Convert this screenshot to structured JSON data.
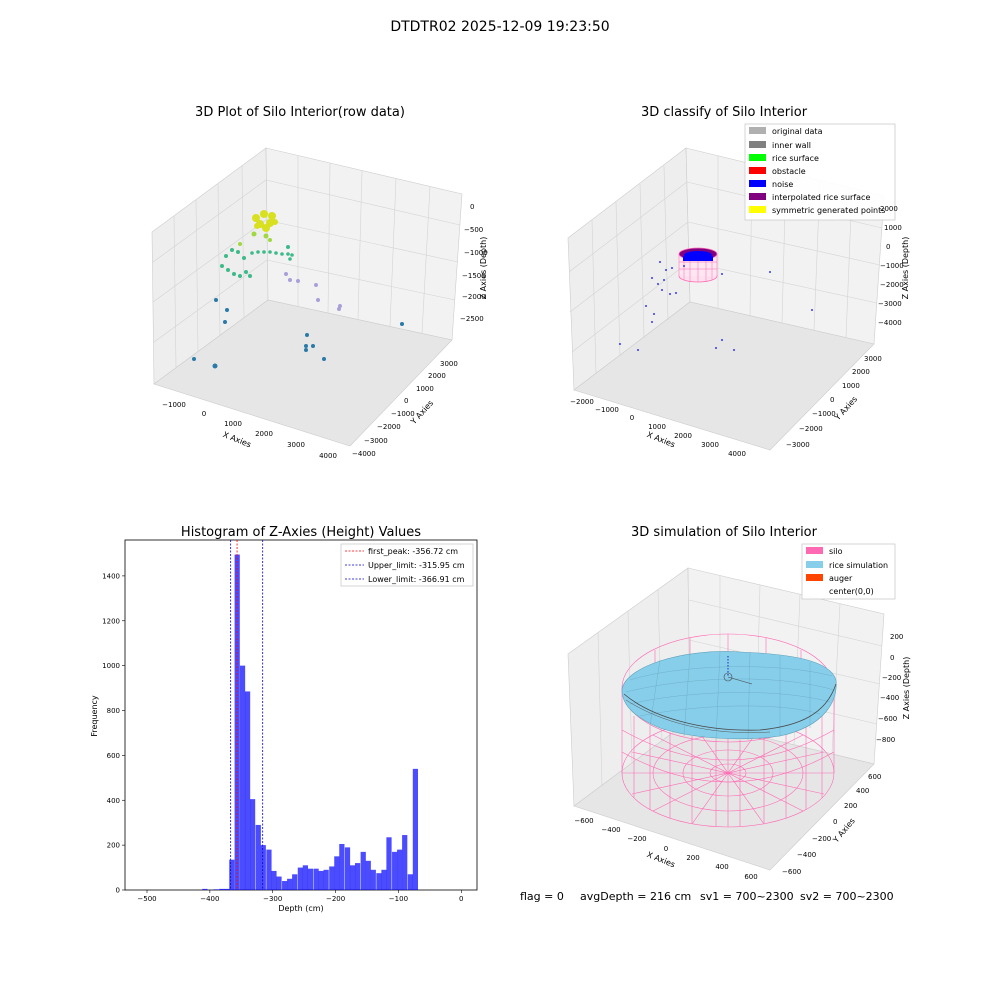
{
  "suptitle": "DTDTR02 2025-12-09 19:23:50",
  "footer": {
    "flag": "flag = 0",
    "avg": "avgDepth = 216 cm",
    "sv1": "sv1 = 700~2300",
    "sv2": "sv2 = 700~2300"
  },
  "colors": {
    "original_data": "#b0b0b0",
    "inner_wall": "#808080",
    "rice_surface": "#00ff00",
    "obstacle": "#ff0000",
    "noise": "#0000ff",
    "interpolated_rice_surface": "#800080",
    "symmetric_generated_points": "#ffff00",
    "silo": "#ff69b4",
    "rice_simulation": "#87ceeb",
    "auger": "#ff4500",
    "hist_bar": "#0000ff"
  },
  "panels": {
    "raw": {
      "title": "3D Plot of Silo Interior(row data)",
      "xlabel": "X Axies",
      "ylabel": "Y Axies",
      "zlabel": "Z Axies (Depth)",
      "xticks": [
        "−1000",
        "0",
        "1000",
        "2000",
        "3000",
        "4000"
      ],
      "yticks": [
        "−4000",
        "−3000",
        "−2000",
        "−1000",
        "0",
        "1000",
        "2000",
        "3000"
      ],
      "zticks": [
        "0",
        "−500",
        "−1000",
        "−1500",
        "−2000",
        "−2500"
      ]
    },
    "classify": {
      "title": "3D classify of Silo Interior",
      "xlabel": "X Axies",
      "ylabel": "Y Axies",
      "zlabel": "Z Axies (Depth)",
      "xticks": [
        "−2000",
        "−1000",
        "0",
        "1000",
        "2000",
        "3000",
        "4000"
      ],
      "yticks": [
        "−3000",
        "−2000",
        "−1000",
        "0",
        "1000",
        "2000",
        "3000"
      ],
      "zticks": [
        "2000",
        "1000",
        "0",
        "−1000",
        "−2000",
        "−3000",
        "−4000"
      ],
      "legend": [
        "original data",
        "inner wall",
        "rice surface",
        "obstacle",
        "noise",
        "interpolated rice surface",
        "symmetric generated points"
      ]
    },
    "sim": {
      "title": "3D simulation of Silo Interior",
      "xlabel": "X Axies",
      "ylabel": "Y Axies",
      "zlabel": "Z Axies (Depth)",
      "xticks": [
        "−600",
        "−400",
        "−200",
        "0",
        "200",
        "400",
        "600"
      ],
      "yticks": [
        "−600",
        "−400",
        "−200",
        "0",
        "200",
        "400",
        "600"
      ],
      "zticks": [
        "200",
        "0",
        "−200",
        "−400",
        "−600",
        "−800"
      ],
      "legend": [
        "silo",
        "rice simulation",
        "auger",
        "center(0,0)"
      ]
    }
  },
  "chart_data": {
    "type": "bar",
    "title": "Histogram of Z-Axies (Height) Values",
    "xlabel": "Depth (cm)",
    "ylabel": "Frequency",
    "xlim": [
      -535,
      25
    ],
    "ylim": [
      0,
      1560
    ],
    "xticks": [
      -500,
      -400,
      -300,
      -200,
      -100,
      0
    ],
    "yticks": [
      0,
      200,
      400,
      600,
      800,
      1000,
      1200,
      1400
    ],
    "bin_width": 8.3,
    "bins": [
      {
        "x": -408,
        "v": 5
      },
      {
        "x": -390,
        "v": 3
      },
      {
        "x": -381,
        "v": 5
      },
      {
        "x": -373,
        "v": 5
      },
      {
        "x": -365,
        "v": 135
      },
      {
        "x": -356.5,
        "v": 1495
      },
      {
        "x": -348,
        "v": 1000
      },
      {
        "x": -340,
        "v": 885
      },
      {
        "x": -332,
        "v": 405
      },
      {
        "x": -323,
        "v": 290
      },
      {
        "x": -315,
        "v": 200
      },
      {
        "x": -306,
        "v": 180
      },
      {
        "x": -298,
        "v": 85
      },
      {
        "x": -290,
        "v": 60
      },
      {
        "x": -281,
        "v": 40
      },
      {
        "x": -273,
        "v": 50
      },
      {
        "x": -265,
        "v": 70
      },
      {
        "x": -256,
        "v": 100
      },
      {
        "x": -248,
        "v": 110
      },
      {
        "x": -240,
        "v": 95
      },
      {
        "x": -231,
        "v": 95
      },
      {
        "x": -223,
        "v": 85
      },
      {
        "x": -215,
        "v": 90
      },
      {
        "x": -206,
        "v": 105
      },
      {
        "x": -198,
        "v": 150
      },
      {
        "x": -190,
        "v": 205
      },
      {
        "x": -181,
        "v": 190
      },
      {
        "x": -173,
        "v": 110
      },
      {
        "x": -165,
        "v": 120
      },
      {
        "x": -156,
        "v": 170
      },
      {
        "x": -148,
        "v": 130
      },
      {
        "x": -140,
        "v": 90
      },
      {
        "x": -131,
        "v": 75
      },
      {
        "x": -123,
        "v": 90
      },
      {
        "x": -115,
        "v": 235
      },
      {
        "x": -106,
        "v": 170
      },
      {
        "x": -98,
        "v": 180
      },
      {
        "x": -90,
        "v": 245
      },
      {
        "x": -81,
        "v": 70
      },
      {
        "x": -73,
        "v": 540
      }
    ],
    "vlines": [
      {
        "x": -356.72,
        "label": "first_peak: -356.72 cm",
        "color": "#ff0000"
      },
      {
        "x": -315.95,
        "label": "Upper_limit: -315.95 cm",
        "color": "#0000cc"
      },
      {
        "x": -366.91,
        "label": "Lower_limit: -366.91 cm",
        "color": "#0000cc"
      }
    ],
    "legend_position": "top-right"
  }
}
